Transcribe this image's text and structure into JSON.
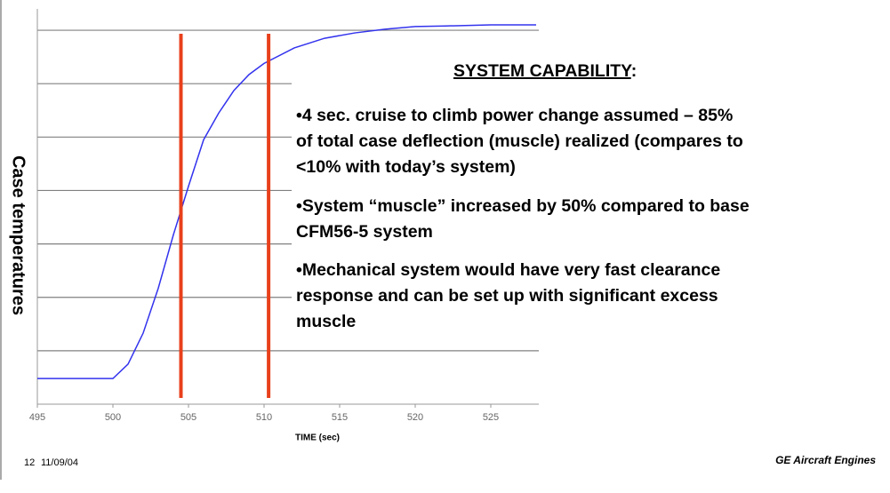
{
  "chart_data": {
    "type": "line",
    "x_label": "TIME (sec)",
    "y_label": "Case temperatures",
    "x": [
      495,
      500,
      501,
      502,
      503,
      504,
      505,
      506,
      507,
      508,
      509,
      510,
      512,
      514,
      516,
      518,
      520,
      522,
      525,
      528
    ],
    "series": [
      {
        "color": "#3333ee",
        "values": [
          0.48,
          0.48,
          0.75,
          1.33,
          2.17,
          3.17,
          4.08,
          4.95,
          5.45,
          5.87,
          6.17,
          6.38,
          6.67,
          6.85,
          6.95,
          7.02,
          7.07,
          7.08,
          7.1,
          7.1
        ]
      }
    ],
    "vlines": [
      504.5,
      510.3
    ],
    "vline_color": "#e8401c",
    "xlim": [
      495,
      528
    ],
    "xticks": [
      495,
      500,
      505,
      510,
      515,
      520,
      525
    ],
    "ylim": [
      0,
      7.4
    ],
    "yticks": [
      1,
      2,
      3,
      4,
      5,
      6,
      7
    ],
    "grid": true
  },
  "panel": {
    "heading": "SYSTEM CAPABILITY",
    "heading_suffix": ":",
    "bullets": [
      [
        "•4 sec. cruise to climb power change assumed – 85%",
        "of total case deflection (muscle) realized (compares to",
        "<10% with today’s system)"
      ],
      [
        "•System “muscle” increased by 50% compared to base",
        "CFM56-5 system"
      ],
      [
        "•Mechanical system would have very fast clearance",
        "response and can be set up with significant excess",
        "muscle"
      ]
    ]
  },
  "footer": {
    "page": "12",
    "date": "11/09/04",
    "brand": "GE Aircraft Engines"
  }
}
